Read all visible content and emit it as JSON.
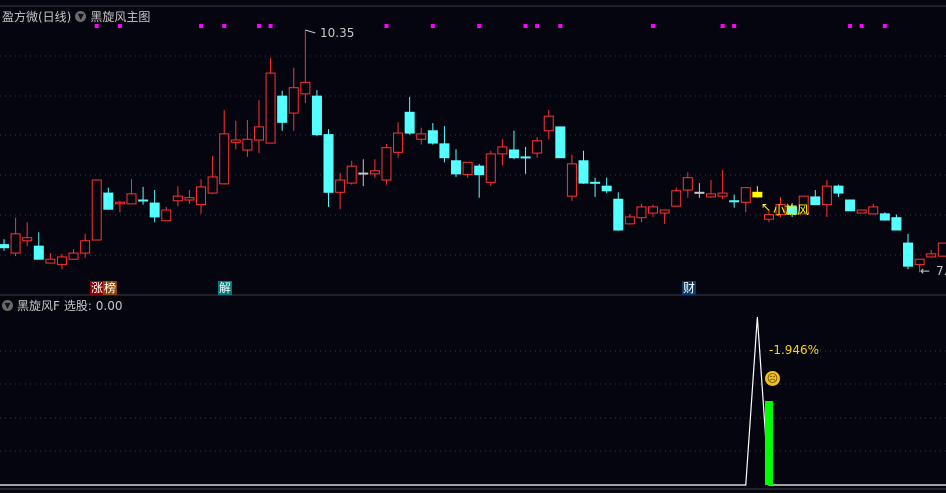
{
  "main_panel": {
    "title": "盈方微(日线)",
    "indicator_name": "黑旋风主图",
    "high_label": "10.35",
    "low_label": "7.",
    "signal_label": "小旋风",
    "event_tags": [
      {
        "text": "涨",
        "color": "#8b0000"
      },
      {
        "text": "榜",
        "color": "#8b4500"
      },
      {
        "text": "解",
        "color": "#007b7b"
      },
      {
        "text": "财",
        "color": "#0a3a6a"
      }
    ]
  },
  "sub_panel": {
    "indicator_name": "黑旋风F",
    "select_label": "选股: 0.00",
    "percent_label": "-1.946%",
    "face_icon": "sad-face-icon"
  },
  "colors": {
    "up": "#ff3232",
    "down": "#54ffff",
    "doji_gray": "#c8c8c8",
    "highlight": "#ffff00",
    "marker": "#ff00ff",
    "bar": "#00ff00",
    "line": "#ffffff"
  },
  "chart_data": {
    "type": "candlestick",
    "columns": [
      "open",
      "close",
      "high",
      "low"
    ],
    "candles": [
      [
        7.56,
        7.52,
        7.63,
        7.48
      ],
      [
        7.45,
        7.7,
        7.91,
        7.41
      ],
      [
        7.61,
        7.65,
        7.85,
        7.54
      ],
      [
        7.54,
        7.37,
        7.72,
        7.37
      ],
      [
        7.32,
        7.37,
        7.45,
        7.32
      ],
      [
        7.3,
        7.4,
        7.44,
        7.24
      ],
      [
        7.37,
        7.45,
        7.5,
        7.37
      ],
      [
        7.45,
        7.61,
        7.7,
        7.39
      ],
      [
        7.62,
        8.4,
        8.4,
        7.62
      ],
      [
        8.23,
        8.02,
        8.3,
        8.02
      ],
      [
        8.09,
        8.11,
        8.13,
        7.98
      ],
      [
        8.09,
        8.22,
        8.41,
        8.09
      ],
      [
        8.14,
        8.14,
        8.31,
        8.08
      ],
      [
        8.1,
        7.92,
        8.27,
        7.85
      ],
      [
        7.87,
        8.01,
        8.05,
        7.87
      ],
      [
        8.13,
        8.19,
        8.32,
        8.06
      ],
      [
        8.14,
        8.17,
        8.27,
        8.09
      ],
      [
        8.08,
        8.31,
        8.41,
        7.96
      ],
      [
        8.23,
        8.44,
        8.71,
        8.22
      ],
      [
        8.35,
        9.0,
        9.31,
        8.34
      ],
      [
        8.89,
        8.92,
        9.17,
        8.8
      ],
      [
        8.79,
        8.93,
        9.18,
        8.7
      ],
      [
        8.92,
        9.09,
        9.44,
        8.75
      ],
      [
        8.88,
        9.79,
        9.99,
        8.88
      ],
      [
        9.49,
        9.15,
        9.56,
        9.04
      ],
      [
        9.27,
        9.6,
        9.86,
        9.04
      ],
      [
        9.52,
        9.67,
        10.35,
        9.4
      ],
      [
        9.49,
        8.99,
        9.57,
        8.97
      ],
      [
        8.99,
        8.24,
        9.06,
        8.05
      ],
      [
        8.24,
        8.4,
        8.49,
        8.02
      ],
      [
        8.36,
        8.58,
        8.65,
        8.34
      ],
      [
        8.49,
        8.49,
        8.67,
        8.32,
        "gray"
      ],
      [
        8.48,
        8.52,
        8.67,
        8.43
      ],
      [
        8.4,
        8.82,
        8.87,
        8.34
      ],
      [
        8.76,
        9.01,
        9.15,
        8.69
      ],
      [
        9.28,
        9.01,
        9.48,
        8.99
      ],
      [
        8.93,
        9.0,
        9.08,
        8.86
      ],
      [
        9.04,
        8.88,
        9.14,
        8.86
      ],
      [
        8.87,
        8.69,
        9.1,
        8.63
      ],
      [
        8.65,
        8.48,
        8.8,
        8.44
      ],
      [
        8.47,
        8.63,
        8.63,
        8.43
      ],
      [
        8.58,
        8.47,
        8.61,
        8.17
      ],
      [
        8.37,
        8.74,
        8.78,
        8.32
      ],
      [
        8.74,
        8.83,
        8.93,
        8.59
      ],
      [
        8.79,
        8.69,
        9.04,
        8.67
      ],
      [
        8.7,
        8.7,
        8.83,
        8.48
      ],
      [
        8.75,
        8.91,
        8.96,
        8.69
      ],
      [
        9.04,
        9.23,
        9.31,
        8.93
      ],
      [
        9.09,
        8.69,
        9.09,
        8.69
      ],
      [
        8.19,
        8.61,
        8.73,
        8.13
      ],
      [
        8.65,
        8.36,
        8.78,
        8.35
      ],
      [
        8.37,
        8.37,
        8.43,
        8.18
      ],
      [
        8.32,
        8.26,
        8.43,
        8.23
      ],
      [
        8.15,
        7.75,
        8.24,
        7.74
      ],
      [
        7.83,
        7.92,
        7.96,
        7.82
      ],
      [
        7.91,
        8.05,
        8.09,
        7.85
      ],
      [
        7.97,
        8.05,
        8.08,
        7.92
      ],
      [
        7.97,
        8.01,
        8.01,
        7.83
      ],
      [
        8.06,
        8.26,
        8.3,
        8.06
      ],
      [
        8.27,
        8.43,
        8.5,
        8.17
      ],
      [
        8.24,
        8.24,
        8.36,
        8.17,
        "gray"
      ],
      [
        8.18,
        8.22,
        8.4,
        8.17
      ],
      [
        8.19,
        8.23,
        8.53,
        8.15
      ],
      [
        8.13,
        8.13,
        8.21,
        8.04
      ],
      [
        8.11,
        8.3,
        8.31,
        7.98
      ],
      [
        8.24,
        8.18,
        8.32,
        8.17,
        "yellow"
      ],
      [
        7.89,
        7.95,
        8.01,
        7.85
      ],
      [
        7.95,
        8.08,
        8.18,
        7.92
      ],
      [
        8.05,
        7.96,
        8.1,
        7.92
      ],
      [
        7.96,
        8.19,
        8.19,
        7.95
      ],
      [
        8.18,
        8.08,
        8.27,
        8.08
      ],
      [
        8.08,
        8.32,
        8.4,
        7.92
      ],
      [
        8.32,
        8.23,
        8.34,
        8.18
      ],
      [
        8.14,
        8.0,
        8.14,
        8.0
      ],
      [
        7.97,
        8.01,
        8.01,
        7.97
      ],
      [
        7.96,
        8.05,
        8.09,
        7.95
      ],
      [
        7.96,
        7.88,
        7.98,
        7.87
      ],
      [
        7.91,
        7.75,
        7.95,
        7.75
      ],
      [
        7.58,
        7.28,
        7.7,
        7.24
      ],
      [
        7.3,
        7.37,
        7.37,
        7.2
      ],
      [
        7.4,
        7.44,
        7.49,
        7.39
      ],
      [
        7.41,
        7.58,
        7.58,
        7.41
      ]
    ],
    "marker_candles": [
      8,
      10,
      17,
      19,
      22,
      23,
      33,
      37,
      41,
      45,
      46,
      48,
      56,
      62,
      63,
      73,
      74,
      76
    ],
    "sub_line": {
      "peak_candle": 65,
      "peak_value": 1.0
    },
    "sub_bar": {
      "candle": 66,
      "value": 0.5
    },
    "grid": true
  }
}
